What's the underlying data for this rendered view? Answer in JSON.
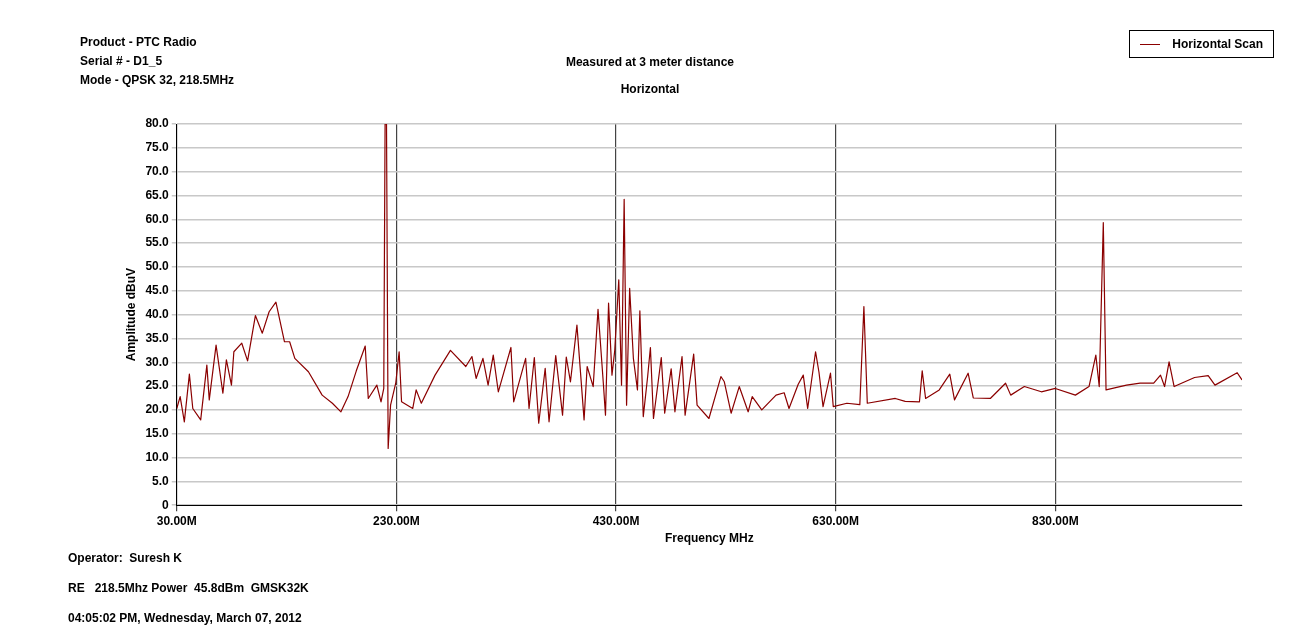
{
  "chart_data": {
    "type": "line",
    "title": "Measured at 3 meter distance",
    "subtitle": "Horizontal",
    "xlabel": "Frequency MHz",
    "ylabel": "Amplitude dBuV",
    "annotations": [
      "Product -  PTC Radio",
      "Serial # -  D1_5",
      "Mode - QPSK 32, 218.5MHz",
      "Operator:  Suresh K",
      "RE   218.5Mhz Power  45.8dBm  GMSK32K",
      "04:05:02 PM, Wednesday, March 07, 2012"
    ],
    "xlim": [
      30,
      1000
    ],
    "xticks": [
      {
        "value": 30,
        "label": "30.00M"
      },
      {
        "value": 230,
        "label": "230.00M"
      },
      {
        "value": 430,
        "label": "430.00M"
      },
      {
        "value": 630,
        "label": "630.00M"
      },
      {
        "value": 830,
        "label": "830.00M"
      }
    ],
    "ylim": [
      0,
      80
    ],
    "yticks": [
      0,
      {
        "value": 5,
        "label": "5.0"
      },
      {
        "value": 10,
        "label": "10.0"
      },
      {
        "value": 15,
        "label": "15.0"
      },
      {
        "value": 20,
        "label": "20.0"
      },
      {
        "value": 25,
        "label": "25.0"
      },
      {
        "value": 30,
        "label": "30.0"
      },
      {
        "value": 35,
        "label": "35.0"
      },
      {
        "value": 40,
        "label": "40.0"
      },
      {
        "value": 45,
        "label": "45.0"
      },
      {
        "value": 50,
        "label": "50.0"
      },
      {
        "value": 55,
        "label": "55.0"
      },
      {
        "value": 60,
        "label": "60.0"
      },
      {
        "value": 65,
        "label": "65.0"
      },
      {
        "value": 70,
        "label": "70.0"
      },
      {
        "value": 75,
        "label": "75.0"
      },
      {
        "value": 80,
        "label": "80.0"
      }
    ],
    "grid": true,
    "legend": "top right",
    "marker": "none",
    "line_style": "solid",
    "series": [
      {
        "name": "Horizontal Scan",
        "color": "#8b0000",
        "x": [
          30,
          33.1,
          36.9,
          41.5,
          44.6,
          51.8,
          57.4,
          59.6,
          65.8,
          72,
          75.2,
          79.8,
          82,
          89.2,
          94.5,
          101.6,
          107.9,
          114.1,
          120.3,
          128.1,
          132.8,
          137.5,
          149.9,
          162.4,
          171.7,
          179.5,
          186,
          193.5,
          201.6,
          204.4,
          212.2,
          216,
          218.5,
          219.7,
          221,
          222.5,
          224.7,
          229.4,
          232.5,
          234.7,
          244.9,
          248,
          252.7,
          265.2,
          279.2,
          293.2,
          298.8,
          302.6,
          308.8,
          313.5,
          318.2,
          322.8,
          334.3,
          336.8,
          347.7,
          350.8,
          355.6,
          359.6,
          365.5,
          369,
          375.1,
          381.3,
          384.7,
          388.5,
          394.4,
          400.9,
          403.7,
          409.2,
          413.6,
          418.5,
          420.4,
          423.2,
          426.3,
          428.8,
          432.5,
          435,
          437.4,
          439.6,
          442.4,
          445.8,
          449.5,
          451.7,
          454.8,
          458.8,
          461.3,
          464.1,
          471.2,
          474.3,
          480.2,
          483.6,
          490.1,
          492.9,
          500.7,
          503.8,
          514.6,
          525.5,
          528.6,
          534.8,
          542.2,
          550.3,
          554,
          562.7,
          575.7,
          583.1,
          587.5,
          595.9,
          600.5,
          604.5,
          611.7,
          614.8,
          618.5,
          625.3,
          627.8,
          640.2,
          652,
          655.7,
          658.8,
          684.3,
          693.3,
          706.3,
          708.8,
          711.9,
          724.3,
          733.9,
          738.2,
          750.6,
          755.3,
          770.8,
          784.7,
          789.4,
          801.8,
          817.3,
          830,
          848.3,
          860.7,
          866.9,
          870,
          873.7,
          876.2,
          894.8,
          907.2,
          919.6,
          925.8,
          929.5,
          933.6,
          938.2,
          956.8,
          969.2,
          975.4,
          995.6,
          1000
        ],
        "values": [
          20.3,
          22.8,
          17.5,
          27.5,
          20.3,
          17.9,
          29.4,
          22.1,
          33.6,
          23.5,
          30.5,
          25.2,
          32.2,
          34,
          30.3,
          39.8,
          36.1,
          40.6,
          42.6,
          34.3,
          34.3,
          30.8,
          28,
          23.1,
          21.4,
          19.6,
          22.8,
          28.2,
          33.4,
          22.4,
          25.2,
          21.7,
          24.5,
          80,
          80,
          11.9,
          21,
          25.6,
          32.2,
          21.7,
          20.3,
          24.2,
          21.4,
          27.3,
          32.5,
          29.1,
          31.2,
          26.6,
          30.8,
          25.2,
          31.5,
          23.8,
          33.1,
          21.7,
          30.8,
          20.3,
          31,
          17.2,
          28.7,
          17.5,
          31.4,
          18.9,
          31.1,
          25.9,
          37.8,
          17.9,
          29.1,
          24.9,
          41.1,
          25.4,
          18.9,
          42.4,
          27.3,
          32.4,
          47.3,
          25.2,
          64.2,
          21,
          45.5,
          30.8,
          24.2,
          40.8,
          18.6,
          27,
          33.1,
          18.2,
          31,
          19.3,
          28.6,
          19.6,
          31.2,
          18.9,
          31.7,
          21,
          18.2,
          27,
          25.9,
          19.3,
          24.9,
          19.6,
          22.8,
          20,
          23.1,
          23.6,
          20.3,
          25.4,
          27.3,
          20.3,
          32.2,
          27.9,
          20.7,
          27.7,
          20.7,
          21.4,
          21.1,
          41.7,
          21.4,
          22.4,
          21.8,
          21.7,
          28.2,
          22.4,
          24.2,
          27.5,
          22.1,
          27.7,
          22.5,
          22.4,
          25.6,
          23.1,
          24.9,
          23.8,
          24.5,
          23.1,
          24.9,
          31.5,
          24.9,
          59.3,
          24.2,
          25.2,
          25.6,
          25.6,
          27.3,
          24.9,
          30.1,
          24.9,
          26.8,
          27.2,
          25.2,
          27.8,
          26.3
        ]
      }
    ]
  }
}
